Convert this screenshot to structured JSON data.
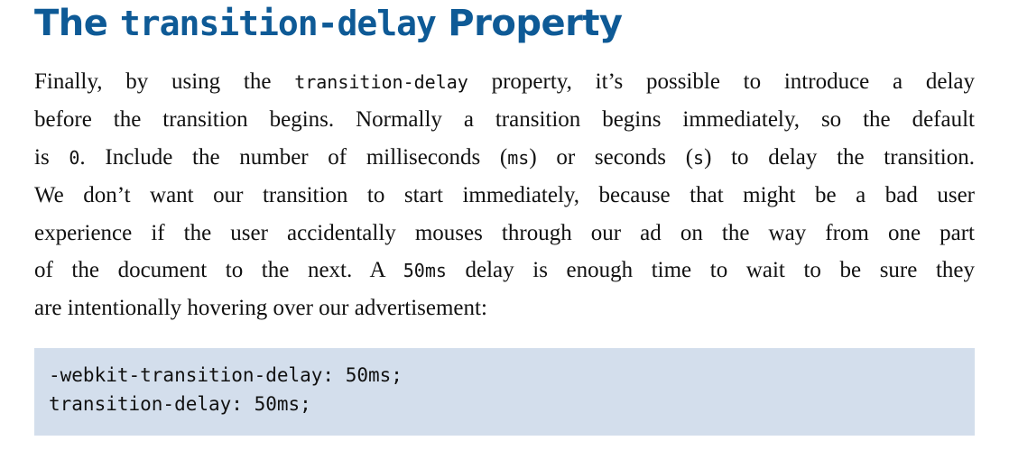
{
  "heading": {
    "prefix": "The ",
    "code": "transition-delay",
    "suffix": " Property"
  },
  "paragraph": {
    "line1": {
      "before": "Finally, by using the ",
      "code": "transition-delay",
      "after": " property, it’s possible to introduce a delay"
    },
    "line2": "before the transition begins. Normally a transition begins immediately, so the default",
    "line3": {
      "t1": "is ",
      "c1": "0",
      "t2": ". Include the number of milliseconds (",
      "c2": "ms",
      "t3": ") or seconds (",
      "c3": "s",
      "t4": ") to delay the transition."
    },
    "line4": "We don’t want our transition to start immediately, because that might be a bad user",
    "line5": "experience if the user accidentally mouses through our ad on the way from one part",
    "line6": {
      "before": "of the document to the next. A ",
      "code": "50ms",
      "after": " delay is enough time to wait to be sure they"
    },
    "line7": "are intentionally hovering over our advertisement:"
  },
  "code_block": {
    "lines": [
      "-webkit-transition-delay: 50ms;",
      "transition-delay: 50ms;"
    ]
  },
  "colors": {
    "heading": "#0e5a96",
    "code_background": "#d3deec",
    "text": "#111111"
  }
}
